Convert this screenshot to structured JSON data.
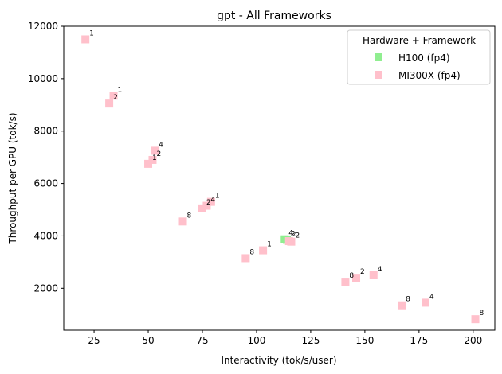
{
  "chart_data": {
    "type": "scatter",
    "title": "gpt - All Frameworks",
    "xlabel": "Interactivity (tok/s/user)",
    "ylabel": "Throughput per GPU (tok/s)",
    "xlim": [
      11,
      210
    ],
    "ylim": [
      400,
      12000
    ],
    "xticks": [
      25,
      50,
      75,
      100,
      125,
      150,
      175,
      200
    ],
    "yticks": [
      2000,
      4000,
      6000,
      8000,
      10000,
      12000
    ],
    "grid": false,
    "legend": {
      "title": "Hardware + Framework",
      "placement": "top-right"
    },
    "series": [
      {
        "name": "H100 (fp4)",
        "color": "#90ee90",
        "marker": "square",
        "points": [
          {
            "x": 113,
            "y": 3870,
            "label": "4"
          },
          {
            "x": 114,
            "y": 3850,
            "label": "2"
          }
        ]
      },
      {
        "name": "MI300X (fp4)",
        "color": "#ffc0cb",
        "marker": "square",
        "points": [
          {
            "x": 21,
            "y": 11500,
            "label": "1"
          },
          {
            "x": 34,
            "y": 9350,
            "label": "1"
          },
          {
            "x": 32,
            "y": 9050,
            "label": "2"
          },
          {
            "x": 53,
            "y": 7250,
            "label": "4"
          },
          {
            "x": 52,
            "y": 6900,
            "label": "2"
          },
          {
            "x": 50,
            "y": 6750,
            "label": "1"
          },
          {
            "x": 79,
            "y": 5300,
            "label": "1"
          },
          {
            "x": 77,
            "y": 5150,
            "label": "4"
          },
          {
            "x": 75,
            "y": 5050,
            "label": "2"
          },
          {
            "x": 66,
            "y": 4550,
            "label": "8"
          },
          {
            "x": 115,
            "y": 3800,
            "label": "4"
          },
          {
            "x": 116,
            "y": 3780,
            "label": "2"
          },
          {
            "x": 103,
            "y": 3450,
            "label": "1"
          },
          {
            "x": 95,
            "y": 3150,
            "label": "8"
          },
          {
            "x": 154,
            "y": 2500,
            "label": "4"
          },
          {
            "x": 146,
            "y": 2400,
            "label": "2"
          },
          {
            "x": 141,
            "y": 2250,
            "label": "8"
          },
          {
            "x": 178,
            "y": 1450,
            "label": "4"
          },
          {
            "x": 167,
            "y": 1350,
            "label": "8"
          },
          {
            "x": 201,
            "y": 820,
            "label": "8"
          }
        ]
      }
    ]
  }
}
